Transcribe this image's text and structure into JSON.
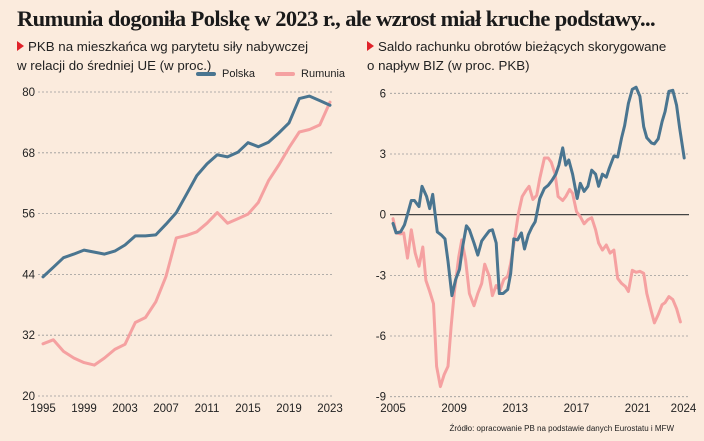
{
  "title": "Rumunia dogoniła Polskę w 2023 r., ale wzrost miał kruche podstawy...",
  "source": "Źródło: opracowanie PB na podstawie danych Eurostatu i MFW",
  "colors": {
    "polska": "#4a7590",
    "rumunia": "#f5a1a1",
    "background": "#fbebdd",
    "marker": "#e0222a"
  },
  "chart_data": [
    {
      "type": "line",
      "subtitle_line1": "PKB na mieszkańca wg parytetu siły nabywczej",
      "subtitle_line2": "w relacji do średniej UE (w proc.)",
      "xlim": [
        1995,
        2023
      ],
      "ylim": [
        20,
        80
      ],
      "xticks": [
        "1995",
        "1999",
        "2003",
        "2007",
        "2011",
        "2015",
        "2019",
        "2023"
      ],
      "yticks": [
        "20",
        "32",
        "44",
        "56",
        "68",
        "80"
      ],
      "grid": "horizontal dashed",
      "legend": "top",
      "x": [
        1995,
        1996,
        1997,
        1998,
        1999,
        2000,
        2001,
        2002,
        2003,
        2004,
        2005,
        2006,
        2007,
        2008,
        2009,
        2010,
        2011,
        2012,
        2013,
        2014,
        2015,
        2016,
        2017,
        2018,
        2019,
        2020,
        2021,
        2022,
        2023
      ],
      "series": [
        {
          "name": "Polska",
          "values": [
            43.5,
            45.4,
            47.3,
            48,
            48.8,
            48.4,
            48,
            48.6,
            49.8,
            51.6,
            51.6,
            51.8,
            53.9,
            56.2,
            59.8,
            63.5,
            65.8,
            67.6,
            67.2,
            68.1,
            70,
            69.2,
            70.1,
            71.9,
            73.9,
            78.7,
            79.2,
            78.3,
            77.4
          ]
        },
        {
          "name": "Rumunia",
          "values": [
            30.3,
            31.1,
            28.8,
            27.5,
            26.6,
            26.1,
            27.5,
            29.2,
            30.2,
            34.5,
            35.5,
            38.6,
            43.6,
            51.2,
            51.7,
            52.4,
            54.1,
            56.2,
            54.1,
            55,
            55.9,
            58.2,
            62.5,
            65.6,
            69,
            72.1,
            72.6,
            73.5,
            78
          ]
        }
      ]
    },
    {
      "type": "line",
      "subtitle_line1": "Saldo rachunku obrotów bieżących skorygowane",
      "subtitle_line2": "o napływ BIZ (w proc. PKB)",
      "xlim": [
        2005,
        2024.1
      ],
      "ylim": [
        -9,
        6
      ],
      "xticks": [
        "2005",
        "2009",
        "2013",
        "2017",
        "2021",
        "2024"
      ],
      "yticks": [
        "-9",
        "-6",
        "-3",
        "0",
        "3",
        "6"
      ],
      "grid": "horizontal dashed, solid zero line",
      "series": [
        {
          "name": "Polska",
          "points": [
            [
              2005.0,
              -0.43
            ],
            [
              2005.2,
              -0.9
            ],
            [
              2005.5,
              -0.85
            ],
            [
              2005.75,
              -0.5
            ],
            [
              2006.0,
              0.15
            ],
            [
              2006.2,
              0.7
            ],
            [
              2006.4,
              0.7
            ],
            [
              2006.7,
              0.4
            ],
            [
              2006.9,
              1.4
            ],
            [
              2007.2,
              0.9
            ],
            [
              2007.4,
              0.3
            ],
            [
              2007.6,
              1.0
            ],
            [
              2007.9,
              -0.85
            ],
            [
              2008.15,
              -1.0
            ],
            [
              2008.4,
              -1.2
            ],
            [
              2008.6,
              -2.3
            ],
            [
              2008.85,
              -4.0
            ],
            [
              2009.1,
              -3.2
            ],
            [
              2009.35,
              -2.7
            ],
            [
              2009.55,
              -1.6
            ],
            [
              2009.8,
              -0.55
            ],
            [
              2010.0,
              -0.75
            ],
            [
              2010.3,
              -1.4
            ],
            [
              2010.55,
              -2.0
            ],
            [
              2010.8,
              -1.3
            ],
            [
              2011.0,
              -1.1
            ],
            [
              2011.3,
              -0.8
            ],
            [
              2011.5,
              -0.75
            ],
            [
              2011.75,
              -1.4
            ],
            [
              2011.95,
              -3.9
            ],
            [
              2012.2,
              -3.9
            ],
            [
              2012.5,
              -3.7
            ],
            [
              2012.7,
              -2.9
            ],
            [
              2012.9,
              -1.2
            ],
            [
              2013.15,
              -1.25
            ],
            [
              2013.4,
              -0.9
            ],
            [
              2013.6,
              -1.7
            ],
            [
              2013.85,
              -1.0
            ],
            [
              2014.1,
              -0.6
            ],
            [
              2014.3,
              -0.35
            ],
            [
              2014.6,
              0.8
            ],
            [
              2014.9,
              1.3
            ],
            [
              2015.15,
              1.45
            ],
            [
              2015.4,
              1.7
            ],
            [
              2015.65,
              2.0
            ],
            [
              2015.85,
              2.45
            ],
            [
              2016.1,
              3.3
            ],
            [
              2016.3,
              2.45
            ],
            [
              2016.5,
              2.7
            ],
            [
              2016.75,
              2.0
            ],
            [
              2017.05,
              0.8
            ],
            [
              2017.25,
              1.55
            ],
            [
              2017.5,
              1.15
            ],
            [
              2017.75,
              1.4
            ],
            [
              2018.0,
              2.2
            ],
            [
              2018.25,
              2.0
            ],
            [
              2018.45,
              1.4
            ],
            [
              2018.7,
              2.0
            ],
            [
              2018.95,
              1.85
            ],
            [
              2019.15,
              2.3
            ],
            [
              2019.45,
              2.9
            ],
            [
              2019.7,
              2.85
            ],
            [
              2019.95,
              3.8
            ],
            [
              2020.15,
              4.4
            ],
            [
              2020.4,
              5.5
            ],
            [
              2020.65,
              6.2
            ],
            [
              2020.9,
              6.3
            ],
            [
              2021.15,
              5.85
            ],
            [
              2021.4,
              4.35
            ],
            [
              2021.6,
              3.8
            ],
            [
              2021.9,
              3.55
            ],
            [
              2022.1,
              3.5
            ],
            [
              2022.35,
              3.75
            ],
            [
              2022.6,
              4.6
            ],
            [
              2022.8,
              5.1
            ],
            [
              2023.05,
              6.1
            ],
            [
              2023.3,
              6.15
            ],
            [
              2023.55,
              5.4
            ],
            [
              2023.75,
              4.3
            ],
            [
              2024.05,
              2.8
            ]
          ]
        },
        {
          "name": "Rumunia",
          "points": [
            [
              2005.0,
              -0.2
            ],
            [
              2005.2,
              -0.9
            ],
            [
              2005.5,
              -0.95
            ],
            [
              2005.7,
              -0.9
            ],
            [
              2005.95,
              -2.15
            ],
            [
              2006.2,
              -0.75
            ],
            [
              2006.45,
              -1.9
            ],
            [
              2006.7,
              -2.55
            ],
            [
              2006.95,
              -1.6
            ],
            [
              2007.15,
              -3.25
            ],
            [
              2007.4,
              -3.8
            ],
            [
              2007.65,
              -4.4
            ],
            [
              2007.85,
              -7.5
            ],
            [
              2008.1,
              -8.5
            ],
            [
              2008.35,
              -7.9
            ],
            [
              2008.6,
              -7.5
            ],
            [
              2008.8,
              -5.55
            ],
            [
              2009.0,
              -3.9
            ],
            [
              2009.3,
              -2.1
            ],
            [
              2009.5,
              -1.25
            ],
            [
              2009.75,
              -2.25
            ],
            [
              2010.0,
              -3.9
            ],
            [
              2010.3,
              -4.5
            ],
            [
              2010.55,
              -3.9
            ],
            [
              2010.8,
              -3.4
            ],
            [
              2011.0,
              -2.45
            ],
            [
              2011.3,
              -3.05
            ],
            [
              2011.5,
              -4.0
            ],
            [
              2011.75,
              -3.5
            ],
            [
              2012.0,
              -3.75
            ],
            [
              2012.25,
              -3.2
            ],
            [
              2012.5,
              -3.05
            ],
            [
              2012.7,
              -2.4
            ],
            [
              2012.95,
              -1.25
            ],
            [
              2013.2,
              0.05
            ],
            [
              2013.45,
              0.9
            ],
            [
              2013.7,
              1.2
            ],
            [
              2013.9,
              1.4
            ],
            [
              2014.15,
              0.75
            ],
            [
              2014.4,
              0.95
            ],
            [
              2014.6,
              1.8
            ],
            [
              2014.9,
              2.8
            ],
            [
              2015.15,
              2.8
            ],
            [
              2015.35,
              2.6
            ],
            [
              2015.6,
              2.0
            ],
            [
              2015.8,
              0.9
            ],
            [
              2016.1,
              0.7
            ],
            [
              2016.3,
              0.9
            ],
            [
              2016.55,
              1.25
            ],
            [
              2016.75,
              1.05
            ],
            [
              2017.0,
              0.15
            ],
            [
              2017.25,
              -0.1
            ],
            [
              2017.5,
              -0.45
            ],
            [
              2017.75,
              -0.25
            ],
            [
              2018.0,
              -0.15
            ],
            [
              2018.25,
              -0.75
            ],
            [
              2018.45,
              -1.4
            ],
            [
              2018.7,
              -1.75
            ],
            [
              2018.95,
              -1.5
            ],
            [
              2019.2,
              -1.9
            ],
            [
              2019.45,
              -1.75
            ],
            [
              2019.7,
              -3.15
            ],
            [
              2019.95,
              -3.4
            ],
            [
              2020.2,
              -3.55
            ],
            [
              2020.4,
              -3.8
            ],
            [
              2020.65,
              -2.75
            ],
            [
              2020.9,
              -2.85
            ],
            [
              2021.15,
              -2.8
            ],
            [
              2021.4,
              -2.9
            ],
            [
              2021.6,
              -3.9
            ],
            [
              2021.9,
              -4.8
            ],
            [
              2022.1,
              -5.35
            ],
            [
              2022.35,
              -4.95
            ],
            [
              2022.6,
              -4.45
            ],
            [
              2022.8,
              -4.35
            ],
            [
              2023.05,
              -4.05
            ],
            [
              2023.3,
              -4.2
            ],
            [
              2023.55,
              -4.65
            ],
            [
              2023.8,
              -5.3
            ]
          ]
        }
      ]
    }
  ]
}
